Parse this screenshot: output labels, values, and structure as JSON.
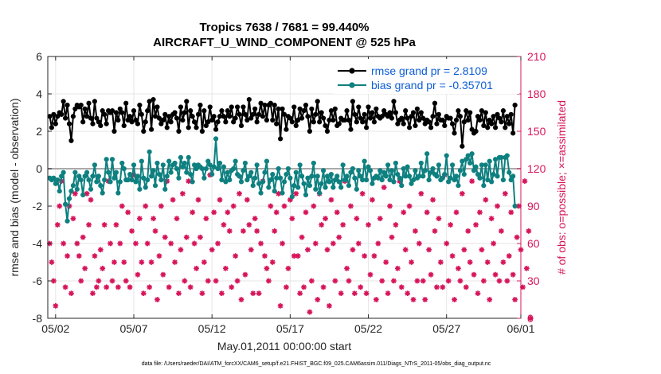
{
  "chart_data": {
    "type": "line",
    "title_line1": "Tropics 7638 / 7681 = 99.440%",
    "title_line2": "AIRCRAFT_U_WIND_COMPONENT @ 525 hPa",
    "xlabel": "May.01,2011 00:00:00 start",
    "ylabel_left": "rmse and bias (model - observation)",
    "ylabel_right": "# of obs: o=possible; ×=assimilated",
    "footnote": "data file: /Users/raeder/DAI/ATM_forcXX/CAM6_setup/f.e21.FHIST_BGC.f09_025.CAM6assim.011/Diags_NTrS_2011-05/obs_diag_output.nc",
    "xlim": [
      0.75,
      31.0
    ],
    "ylim_left": [
      -8,
      6
    ],
    "ylim_right": [
      0,
      210
    ],
    "x_ticks": [
      1.25,
      6.25,
      11.25,
      16.25,
      21.25,
      26.25,
      31.0
    ],
    "x_tick_labels": [
      "05/02",
      "05/07",
      "05/12",
      "05/17",
      "05/22",
      "05/27",
      "06/01"
    ],
    "y_left_ticks": [
      -8,
      -6,
      -4,
      -2,
      0,
      2,
      4,
      6
    ],
    "y_left_tick_labels": [
      "-8",
      "-6",
      "-4",
      "-2",
      "0",
      "2",
      "4",
      "6"
    ],
    "y_right_ticks": [
      0,
      30,
      60,
      90,
      120,
      150,
      180,
      210
    ],
    "y_right_tick_labels": [
      "0",
      "30",
      "60",
      "90",
      "120",
      "150",
      "180",
      "210"
    ],
    "legend": {
      "position": "top-right",
      "entries": [
        {
          "label": "rmse grand pr = 2.8109",
          "color": "#0b5cd6"
        },
        {
          "label": "bias grand pr = -0.35701",
          "color": "#0b5cd6"
        }
      ]
    },
    "colors": {
      "rmse": "#000000",
      "bias": "#0e8080",
      "obs": "#d6145a",
      "right_axis": "#d6145a",
      "zero_line": "#aaaaaa",
      "grid": "#e6e6e6"
    },
    "x_start": 0.875,
    "x_step": 0.125,
    "series": [
      {
        "name": "rmse",
        "axis": "left",
        "values": [
          2.8,
          2.2,
          2.9,
          2.4,
          2.8,
          3.0,
          2.9,
          3.6,
          2.7,
          3.4,
          2.4,
          1.5,
          2.8,
          3.2,
          3.4,
          3.3,
          3.4,
          2.5,
          3.2,
          2.8,
          3.5,
          2.7,
          2.4,
          3.6,
          2.7,
          2.5,
          2.3,
          3.1,
          2.9,
          2.4,
          3.1,
          3.0,
          3.1,
          2.0,
          3.0,
          2.6,
          3.2,
          3.0,
          2.3,
          3.5,
          2.6,
          2.8,
          2.5,
          3.1,
          2.6,
          2.4,
          3.4,
          2.9,
          2.0,
          2.5,
          3.1,
          3.6,
          2.1,
          3.7,
          2.8,
          3.3,
          2.7,
          2.4,
          2.6,
          2.9,
          2.2,
          2.8,
          2.5,
          2.9,
          3.0,
          2.7,
          2.0,
          3.3,
          2.6,
          3.0,
          3.6,
          2.2,
          3.1,
          2.8,
          2.5,
          2.2,
          2.9,
          3.4,
          2.0,
          3.1,
          2.3,
          2.5,
          3.3,
          2.6,
          2.8,
          2.1,
          2.5,
          2.8,
          3.1,
          2.8,
          2.5,
          3.1,
          2.8,
          3.3,
          2.5,
          2.7,
          3.3,
          2.9,
          2.3,
          3.3,
          2.9,
          2.6,
          3.7,
          2.7,
          2.9,
          3.2,
          2.5,
          2.9,
          3.5,
          2.8,
          3.4,
          2.6,
          3.4,
          3.5,
          2.6,
          3.4,
          2.4,
          3.2,
          1.6,
          3.2,
          2.9,
          2.1,
          2.8,
          2.7,
          2.5,
          3.3,
          2.3,
          2.6,
          3.2,
          2.7,
          3.1,
          3.4,
          2.8,
          2.0,
          3.2,
          2.5,
          2.9,
          3.6,
          2.5,
          3.0,
          2.7,
          2.3,
          2.0,
          2.6,
          3.1,
          2.6,
          3.2,
          2.3,
          2.4,
          2.7,
          2.6,
          2.6,
          3.1,
          2.6,
          2.1,
          3.6,
          2.9,
          2.5,
          3.3,
          2.7,
          2.5,
          2.9,
          2.2,
          3.3,
          2.7,
          3.0,
          2.5,
          3.2,
          2.8,
          2.7,
          2.8,
          3.1,
          2.9,
          2.8,
          3.0,
          2.7,
          3.6,
          3.0,
          2.4,
          2.6,
          2.7,
          2.4,
          3.1,
          2.7,
          2.2,
          2.8,
          3.0,
          2.3,
          3.2,
          2.6,
          3.0,
          2.7,
          2.4,
          2.6,
          2.5,
          2.2,
          2.8,
          3.5,
          2.4,
          2.9,
          2.6,
          2.6,
          2.3,
          2.8,
          2.7,
          2.7,
          2.4,
          1.9,
          2.6,
          3.1,
          2.8,
          1.2,
          2.5,
          3.1,
          2.6,
          3.0,
          2.1,
          1.9,
          2.0,
          2.8,
          2.6,
          3.1,
          2.3,
          3.0,
          2.2,
          2.6,
          2.4,
          2.8,
          2.2,
          2.9,
          2.7,
          2.5,
          3.1,
          2.2,
          2.8,
          2.4,
          2.9,
          1.9,
          3.4
        ]
      },
      {
        "name": "bias",
        "axis": "left",
        "values": [
          -0.5,
          -0.6,
          -0.5,
          -0.8,
          -0.6,
          -1.2,
          -0.4,
          -0.2,
          -1.9,
          -2.8,
          -1.6,
          -1.2,
          -0.9,
          -0.2,
          -1.1,
          -0.4,
          -0.6,
          -1.4,
          -0.4,
          -0.2,
          -0.6,
          -1.1,
          -0.4,
          0.2,
          -0.7,
          -0.4,
          -0.9,
          -1.3,
          -0.6,
          0.5,
          -0.2,
          -0.7,
          0.5,
          -0.5,
          -0.2,
          -1.3,
          -0.7,
          0.3,
          0.0,
          -0.6,
          -0.6,
          -0.3,
          -0.6,
          0.2,
          -0.7,
          -0.4,
          -1.1,
          0.4,
          -0.5,
          -1.0,
          -0.6,
          0.9,
          -0.4,
          -0.1,
          -0.9,
          0.3,
          -0.3,
          -0.6,
          0.2,
          -1.1,
          -0.4,
          0.4,
          -0.2,
          0.2,
          0.3,
          0.0,
          -0.5,
          0.6,
          0.1,
          0.3,
          -0.2,
          0.6,
          -0.3,
          -0.7,
          0.2,
          0.0,
          0.2,
          0.1,
          0.0,
          -0.5,
          0.0,
          0.4,
          0.2,
          -0.3,
          0.1,
          1.6,
          0.0,
          0.3,
          -0.6,
          0.1,
          -0.7,
          -0.2,
          -0.6,
          -0.1,
          0.0,
          0.4,
          -0.3,
          -0.4,
          -0.7,
          -0.1,
          0.3,
          -0.6,
          -0.4,
          -0.2,
          -0.9,
          -0.5,
          0.2,
          -0.8,
          -1.3,
          -0.7,
          -0.2,
          0.4,
          -1.0,
          -0.6,
          -0.3,
          -1.2,
          -0.5,
          0.0,
          -0.5,
          -1.3,
          -0.7,
          -0.3,
          0.0,
          -0.5,
          -1.5,
          -0.9,
          -0.2,
          -1.0,
          0.2,
          -0.4,
          -0.8,
          -1.4,
          -0.5,
          -0.9,
          -0.4,
          0.3,
          -1.1,
          -0.4,
          -1.3,
          -0.8,
          -0.1,
          -1.0,
          -0.4,
          -0.7,
          -0.3,
          -1.0,
          -0.6,
          -0.4,
          -0.7,
          -1.0,
          0.2,
          -0.6,
          -0.4,
          -0.9,
          -0.2,
          0.0,
          -0.5,
          -1.1,
          -0.1,
          -0.4,
          -0.6,
          0.4,
          -0.6,
          0.1,
          -0.1,
          -0.8,
          -0.5,
          -0.4,
          -0.5,
          -0.1,
          -0.6,
          -0.2,
          -0.4,
          0.2,
          -0.6,
          -0.1,
          -0.7,
          0.3,
          -0.3,
          -0.5,
          -0.9,
          0.0,
          -0.4,
          0.1,
          -0.4,
          -0.8,
          -0.6,
          -0.1,
          -0.5,
          -0.4,
          0.3,
          -0.4,
          -0.1,
          0.8,
          -0.6,
          -0.2,
          0.0,
          -0.3,
          -0.4,
          0.2,
          -0.6,
          -0.5,
          -0.3,
          0.7,
          -0.7,
          -0.5,
          0.2,
          -0.6,
          -0.4,
          -0.9,
          -0.1,
          0.4,
          -0.3,
          0.5,
          0.7,
          0.3,
          0.8,
          -0.1,
          0.1,
          -0.3,
          -0.5,
          0.2,
          -0.9,
          0.2,
          -0.6,
          0.4,
          -0.7,
          -0.3,
          0.5,
          -0.4,
          0.6,
          0.6,
          -0.6,
          0.6,
          0.7,
          -0.2,
          -0.6,
          -0.4,
          -2.0
        ]
      },
      {
        "name": "obs_count",
        "axis": "right",
        "values": [
          60,
          45,
          30,
          10,
          75,
          90,
          110,
          60,
          25,
          50,
          90,
          20,
          80,
          100,
          60,
          50,
          30,
          65,
          40,
          100,
          75,
          95,
          20,
          50,
          25,
          30,
          55,
          40,
          75,
          25,
          110,
          60,
          30,
          45,
          75,
          25,
          60,
          90,
          45,
          30,
          85,
          25,
          70,
          115,
          60,
          35,
          80,
          45,
          20,
          90,
          60,
          25,
          45,
          80,
          70,
          15,
          50,
          90,
          35,
          65,
          110,
          25,
          60,
          95,
          45,
          80,
          20,
          55,
          100,
          30,
          65,
          110,
          25,
          85,
          60,
          40,
          95,
          65,
          20,
          45,
          80,
          30,
          115,
          55,
          85,
          30,
          60,
          95,
          20,
          75,
          40,
          85,
          70,
          25,
          90,
          50,
          30,
          100,
          15,
          70,
          35,
          95,
          75,
          55,
          20,
          80,
          70,
          20,
          60,
          110,
          50,
          40,
          30,
          90,
          45,
          70,
          85,
          100,
          10,
          60,
          90,
          25,
          40,
          95,
          80,
          50,
          100,
          50,
          20,
          65,
          25,
          85,
          55,
          5,
          30,
          90,
          60,
          15,
          100,
          75,
          25,
          80,
          55,
          10,
          95,
          60,
          30,
          85,
          65,
          20,
          75,
          110,
          40,
          30,
          90,
          55,
          20,
          80,
          60,
          25,
          100,
          50,
          20,
          75,
          35,
          95,
          50,
          15,
          60,
          80,
          30,
          105,
          45,
          20,
          90,
          65,
          30,
          75,
          40,
          110,
          25,
          85,
          55,
          20,
          90,
          45,
          15,
          70,
          30,
          60,
          100,
          30,
          15,
          85,
          55,
          35,
          95,
          70,
          25,
          80,
          45,
          25,
          115,
          60,
          30,
          75,
          50,
          15,
          85,
          40,
          30,
          100,
          55,
          25,
          70,
          45,
          110,
          35,
          75,
          20,
          85,
          55,
          30,
          95,
          45,
          15,
          80,
          60,
          35,
          90,
          30,
          70,
          45,
          100,
          30,
          50,
          85,
          35,
          15,
          65,
          90,
          55,
          25,
          110,
          40,
          70,
          0
        ]
      }
    ]
  }
}
